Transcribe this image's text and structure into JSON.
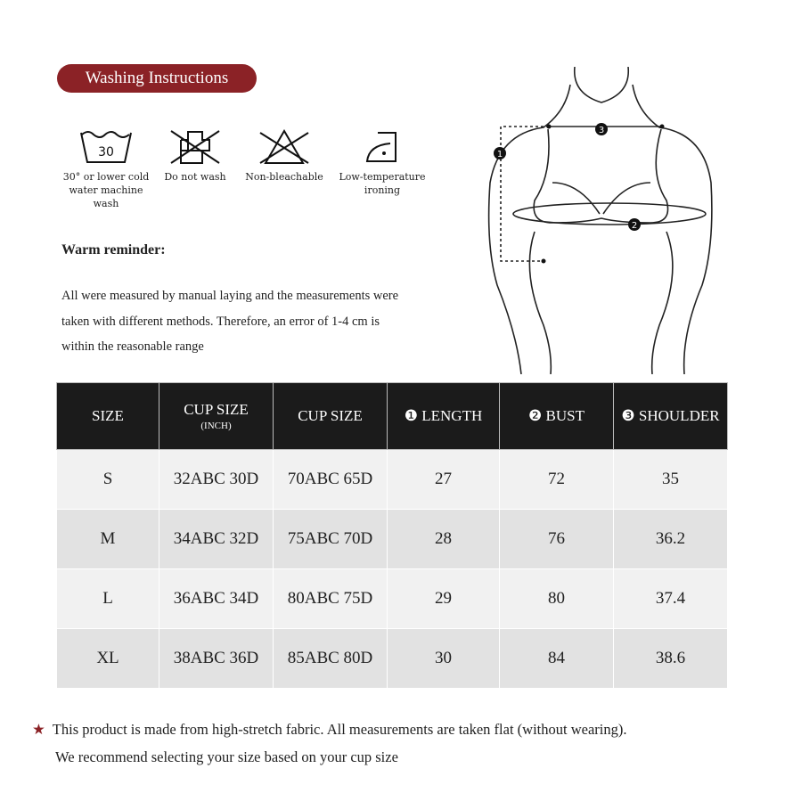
{
  "washing": {
    "title": "Washing Instructions",
    "accent_color": "#8b2226",
    "icons": [
      {
        "icon": "wash-30-icon",
        "temp": "30",
        "label_lines": [
          "30° or lower cold",
          "water machine wash"
        ]
      },
      {
        "icon": "do-not-wash-icon",
        "label_lines": [
          "Do not wash"
        ]
      },
      {
        "icon": "non-bleach-icon",
        "label_lines": [
          "Non-bleachable"
        ]
      },
      {
        "icon": "low-iron-icon",
        "label_lines": [
          "Low-temperature",
          "ironing"
        ]
      }
    ]
  },
  "reminder": {
    "title": "Warm reminder:",
    "lines": [
      "All were measured by manual laying and the measurements were",
      "taken with different methods. Therefore, an error of 1-4 cm is",
      "within the reasonable range"
    ]
  },
  "figure": {
    "markers": [
      "1",
      "2",
      "3"
    ]
  },
  "table": {
    "headers": [
      {
        "label": "SIZE"
      },
      {
        "label": "CUP SIZE",
        "sub": "(INCH)"
      },
      {
        "label": "CUP SIZE"
      },
      {
        "label": "❶ LENGTH"
      },
      {
        "label": "❷ BUST"
      },
      {
        "label": "❸ SHOULDER"
      }
    ],
    "rows": [
      [
        "S",
        "32ABC 30D",
        "70ABC 65D",
        "27",
        "72",
        "35"
      ],
      [
        "M",
        "34ABC 32D",
        "75ABC 70D",
        "28",
        "76",
        "36.2"
      ],
      [
        "L",
        "36ABC 34D",
        "80ABC 75D",
        "29",
        "80",
        "37.4"
      ],
      [
        "XL",
        "38ABC 36D",
        "85ABC 80D",
        "30",
        "84",
        "38.6"
      ]
    ]
  },
  "note": {
    "star": "★",
    "line1": "This product is made from high-stretch fabric. All measurements are taken flat (without wearing).",
    "line2": "We recommend selecting your size based on your cup size"
  }
}
